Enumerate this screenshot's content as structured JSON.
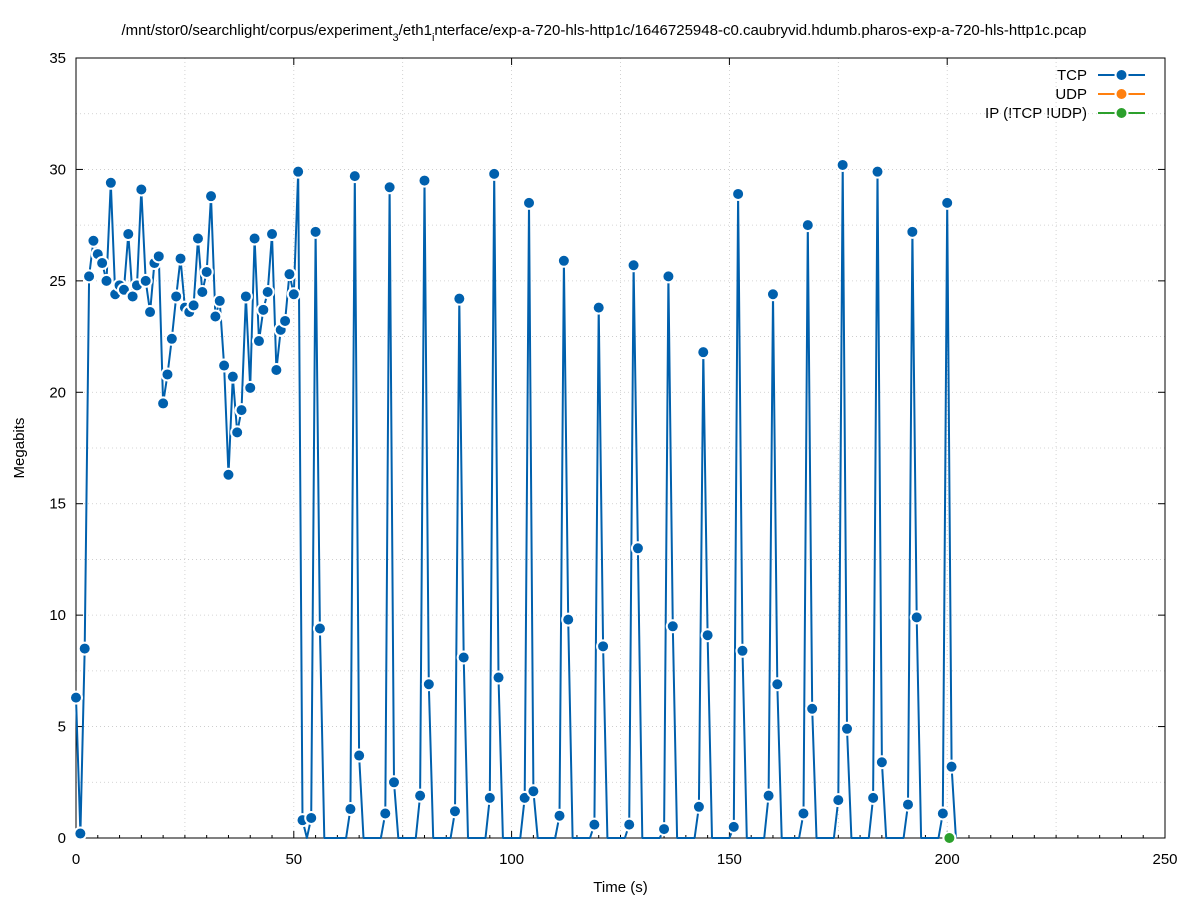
{
  "title": "/mnt/stor0/searchlight/corpus/experiment_3/eth1_interface/exp-a-720-hls-http1c/1646725948-c0.caubryvid.hdumb.pharos-exp-a-720-hls-http1c.pcap",
  "colors": {
    "tcp": "#0060ad",
    "udp": "#ff7f0e",
    "ip": "#2ca02c",
    "grid": "#c8c8c8"
  },
  "chart_data": {
    "type": "line",
    "xlabel": "Time (s)",
    "ylabel": "Megabits",
    "xlim": [
      0,
      250
    ],
    "ylim": [
      0,
      35
    ],
    "xticks": [
      0,
      50,
      100,
      150,
      200,
      250
    ],
    "yticks": [
      0,
      5,
      10,
      15,
      20,
      25,
      30,
      35
    ],
    "grid": true,
    "legend_position": "top-right",
    "series": [
      {
        "name": "TCP",
        "points": [
          [
            0,
            6.3
          ],
          [
            1,
            0.2
          ],
          [
            2,
            8.5
          ],
          [
            3,
            25.2
          ],
          [
            4,
            26.8
          ],
          [
            5,
            26.2
          ],
          [
            6,
            25.8
          ],
          [
            7,
            25.0
          ],
          [
            8,
            29.4
          ],
          [
            9,
            24.4
          ],
          [
            10,
            24.8
          ],
          [
            11,
            24.6
          ],
          [
            12,
            27.1
          ],
          [
            13,
            24.3
          ],
          [
            14,
            24.8
          ],
          [
            15,
            29.1
          ],
          [
            16,
            25.0
          ],
          [
            17,
            23.6
          ],
          [
            18,
            25.8
          ],
          [
            19,
            26.1
          ],
          [
            20,
            19.5
          ],
          [
            21,
            20.8
          ],
          [
            22,
            22.4
          ],
          [
            23,
            24.3
          ],
          [
            24,
            26.0
          ],
          [
            25,
            23.8
          ],
          [
            26,
            23.6
          ],
          [
            27,
            23.9
          ],
          [
            28,
            26.9
          ],
          [
            29,
            24.5
          ],
          [
            30,
            25.4
          ],
          [
            31,
            28.8
          ],
          [
            32,
            23.4
          ],
          [
            33,
            24.1
          ],
          [
            34,
            21.2
          ],
          [
            35,
            16.3
          ],
          [
            36,
            20.7
          ],
          [
            37,
            18.2
          ],
          [
            38,
            19.2
          ],
          [
            39,
            24.3
          ],
          [
            40,
            20.2
          ],
          [
            41,
            26.9
          ],
          [
            42,
            22.3
          ],
          [
            43,
            23.7
          ],
          [
            44,
            24.5
          ],
          [
            45,
            27.1
          ],
          [
            46,
            21.0
          ],
          [
            47,
            22.8
          ],
          [
            48,
            23.2
          ],
          [
            49,
            25.3
          ],
          [
            50,
            24.4
          ],
          [
            51,
            29.9
          ],
          [
            52,
            0.8
          ],
          [
            53,
            0
          ],
          [
            54,
            0.9
          ],
          [
            55,
            27.2
          ],
          [
            56,
            9.4
          ],
          [
            57,
            0
          ],
          [
            62,
            0
          ],
          [
            63,
            1.3
          ],
          [
            64,
            29.7
          ],
          [
            65,
            3.7
          ],
          [
            66,
            0
          ],
          [
            70,
            0
          ],
          [
            71,
            1.1
          ],
          [
            72,
            29.2
          ],
          [
            73,
            2.5
          ],
          [
            74,
            0
          ],
          [
            78,
            0
          ],
          [
            79,
            1.9
          ],
          [
            80,
            29.5
          ],
          [
            81,
            6.9
          ],
          [
            82,
            0
          ],
          [
            86,
            0
          ],
          [
            87,
            1.2
          ],
          [
            88,
            24.2
          ],
          [
            89,
            8.1
          ],
          [
            90,
            0
          ],
          [
            94,
            0
          ],
          [
            95,
            1.8
          ],
          [
            96,
            29.8
          ],
          [
            97,
            7.2
          ],
          [
            98,
            0
          ],
          [
            102,
            0
          ],
          [
            103,
            1.8
          ],
          [
            104,
            28.5
          ],
          [
            105,
            2.1
          ],
          [
            106,
            0
          ],
          [
            110,
            0
          ],
          [
            111,
            1.0
          ],
          [
            112,
            25.9
          ],
          [
            113,
            9.8
          ],
          [
            114,
            0
          ],
          [
            118,
            0
          ],
          [
            119,
            0.6
          ],
          [
            120,
            23.8
          ],
          [
            121,
            8.6
          ],
          [
            122,
            0
          ],
          [
            126,
            0
          ],
          [
            127,
            0.6
          ],
          [
            128,
            25.7
          ],
          [
            129,
            13.0
          ],
          [
            130,
            0
          ],
          [
            134,
            0
          ],
          [
            135,
            0.4
          ],
          [
            136,
            25.2
          ],
          [
            137,
            9.5
          ],
          [
            138,
            0
          ],
          [
            142,
            0
          ],
          [
            143,
            1.4
          ],
          [
            144,
            21.8
          ],
          [
            145,
            9.1
          ],
          [
            146,
            0
          ],
          [
            150,
            0
          ],
          [
            151,
            0.5
          ],
          [
            152,
            28.9
          ],
          [
            153,
            8.4
          ],
          [
            154,
            0
          ],
          [
            158,
            0
          ],
          [
            159,
            1.9
          ],
          [
            160,
            24.4
          ],
          [
            161,
            6.9
          ],
          [
            162,
            0
          ],
          [
            166,
            0
          ],
          [
            167,
            1.1
          ],
          [
            168,
            27.5
          ],
          [
            169,
            5.8
          ],
          [
            170,
            0
          ],
          [
            174,
            0
          ],
          [
            175,
            1.7
          ],
          [
            176,
            30.2
          ],
          [
            177,
            4.9
          ],
          [
            178,
            0
          ],
          [
            182,
            0
          ],
          [
            183,
            1.8
          ],
          [
            184,
            29.9
          ],
          [
            185,
            3.4
          ],
          [
            186,
            0
          ],
          [
            190,
            0
          ],
          [
            191,
            1.5
          ],
          [
            192,
            27.2
          ],
          [
            193,
            9.9
          ],
          [
            194,
            0
          ],
          [
            198,
            0
          ],
          [
            199,
            1.1
          ],
          [
            200,
            28.5
          ],
          [
            201,
            3.2
          ],
          [
            202,
            0
          ]
        ]
      },
      {
        "name": "UDP",
        "points": []
      },
      {
        "name": "IP (!TCP  !UDP)",
        "points": [
          [
            200.5,
            0
          ]
        ]
      }
    ]
  }
}
